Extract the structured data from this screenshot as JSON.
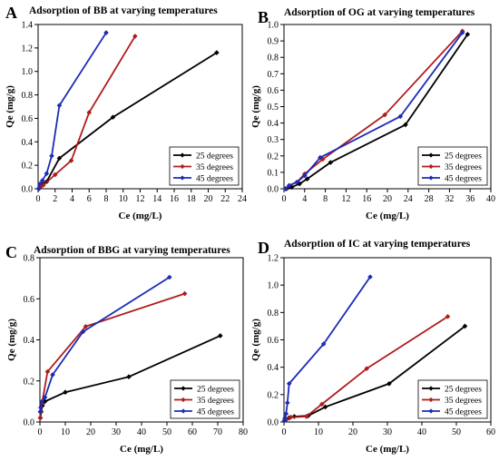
{
  "colors": {
    "s25": "#000000",
    "s35": "#b01c1c",
    "s45": "#1c2bb8"
  },
  "chart_data": [
    {
      "type": "line",
      "letter": "A",
      "title": "Adsorption of BB at varying temperatures",
      "xlabel": "Ce (mg/L)",
      "ylabel": "Qe (mg/g)",
      "xlim": [
        0,
        24
      ],
      "ylim": [
        0,
        1.4
      ],
      "xticks": [
        "0",
        "2",
        "4",
        "6",
        "8",
        "10",
        "12",
        "14",
        "16",
        "18",
        "20",
        "22",
        "24"
      ],
      "yticks": [
        "0.0",
        "0.2",
        "0.4",
        "0.6",
        "0.8",
        "1.0",
        "1.2",
        "1.4"
      ],
      "legend_position": "bottom-right",
      "series": [
        {
          "name": "25 degrees",
          "x": [
            0.1,
            0.3,
            0.6,
            1.0,
            2.5,
            8.8,
            21.0
          ],
          "y": [
            0.0,
            0.02,
            0.04,
            0.06,
            0.26,
            0.61,
            1.16
          ]
        },
        {
          "name": "35 degrees",
          "x": [
            0.05,
            0.2,
            0.6,
            2.0,
            3.9,
            6.0,
            11.4
          ],
          "y": [
            0.0,
            0.02,
            0.03,
            0.12,
            0.24,
            0.65,
            1.3
          ]
        },
        {
          "name": "45 degrees",
          "x": [
            0.05,
            0.2,
            0.5,
            1.0,
            1.6,
            2.5,
            8.0
          ],
          "y": [
            0.0,
            0.04,
            0.07,
            0.13,
            0.28,
            0.71,
            1.33
          ]
        }
      ]
    },
    {
      "type": "line",
      "letter": "B",
      "title": "Adsorption of OG at varying temperatures",
      "xlabel": "Ce (mg/L)",
      "ylabel": "Qe (mg/g)",
      "xlim": [
        0,
        40
      ],
      "ylim": [
        0,
        1.0
      ],
      "xticks": [
        "0",
        "4",
        "8",
        "12",
        "16",
        "20",
        "24",
        "28",
        "32",
        "36",
        "40"
      ],
      "yticks": [
        "0.0",
        "0.1",
        "0.2",
        "0.3",
        "0.4",
        "0.5",
        "0.6",
        "0.7",
        "0.8",
        "0.9",
        "1.0"
      ],
      "legend_position": "bottom-right",
      "series": [
        {
          "name": "25 degrees",
          "x": [
            0.5,
            1.5,
            3.0,
            4.5,
            9.0,
            23.5,
            35.5
          ],
          "y": [
            0.0,
            0.01,
            0.03,
            0.06,
            0.16,
            0.39,
            0.94
          ]
        },
        {
          "name": "35 degrees",
          "x": [
            0.3,
            1.0,
            2.5,
            4.0,
            7.5,
            19.5,
            34.5
          ],
          "y": [
            0.0,
            0.02,
            0.04,
            0.09,
            0.18,
            0.45,
            0.96
          ]
        },
        {
          "name": "45 degrees",
          "x": [
            0.3,
            1.0,
            2.5,
            4.0,
            7.0,
            22.5,
            34.5
          ],
          "y": [
            0.0,
            0.02,
            0.04,
            0.08,
            0.19,
            0.44,
            0.95
          ]
        }
      ]
    },
    {
      "type": "line",
      "letter": "C",
      "title": "Adsorption of BBG at varying temperatures",
      "xlabel": "Ce (mg/L)",
      "ylabel": "Qe (mg/g)",
      "xlim": [
        0,
        80
      ],
      "ylim": [
        0,
        0.8
      ],
      "xticks": [
        "0",
        "10",
        "20",
        "30",
        "40",
        "50",
        "60",
        "70",
        "80"
      ],
      "yticks": [
        "0.0",
        "0.2",
        "0.4",
        "0.6",
        "0.8"
      ],
      "legend_position": "bottom-right",
      "series": [
        {
          "name": "25 degrees",
          "x": [
            0.2,
            0.5,
            1.0,
            2.0,
            10.0,
            35.0,
            71.0
          ],
          "y": [
            0.02,
            0.05,
            0.08,
            0.1,
            0.145,
            0.22,
            0.42
          ]
        },
        {
          "name": "35 degrees",
          "x": [
            0.1,
            0.3,
            0.8,
            3.0,
            18.0,
            57.0
          ],
          "y": [
            0.02,
            0.05,
            0.09,
            0.245,
            0.465,
            0.625
          ]
        },
        {
          "name": "45 degrees",
          "x": [
            0.1,
            0.3,
            0.8,
            2.0,
            5.0,
            17.0,
            51.0
          ],
          "y": [
            0.05,
            0.07,
            0.1,
            0.12,
            0.23,
            0.44,
            0.705
          ]
        }
      ]
    },
    {
      "type": "line",
      "letter": "D",
      "title": "Adsorption of IC at varying temperatures",
      "xlabel": "Ce (mg/L)",
      "ylabel": "Qe (mg/g)",
      "xlim": [
        0,
        60
      ],
      "ylim": [
        0,
        1.2
      ],
      "xticks": [
        "0",
        "10",
        "20",
        "30",
        "40",
        "50",
        "60"
      ],
      "yticks": [
        "0.0",
        "0.2",
        "0.4",
        "0.6",
        "0.8",
        "1.0",
        "1.2"
      ],
      "legend_position": "bottom-right",
      "series": [
        {
          "name": "25 degrees",
          "x": [
            0.3,
            1.5,
            3.0,
            7.0,
            12.0,
            30.5,
            52.5
          ],
          "y": [
            0.02,
            0.03,
            0.04,
            0.045,
            0.11,
            0.28,
            0.7
          ]
        },
        {
          "name": "35 degrees",
          "x": [
            0.2,
            0.8,
            2.0,
            6.5,
            11.0,
            24.0,
            47.5
          ],
          "y": [
            0.01,
            0.02,
            0.035,
            0.04,
            0.13,
            0.39,
            0.77
          ]
        },
        {
          "name": "45 degrees",
          "x": [
            0.1,
            0.3,
            0.6,
            1.0,
            1.5,
            11.5,
            25.0
          ],
          "y": [
            0.01,
            0.03,
            0.06,
            0.14,
            0.28,
            0.57,
            1.06
          ]
        }
      ]
    }
  ]
}
